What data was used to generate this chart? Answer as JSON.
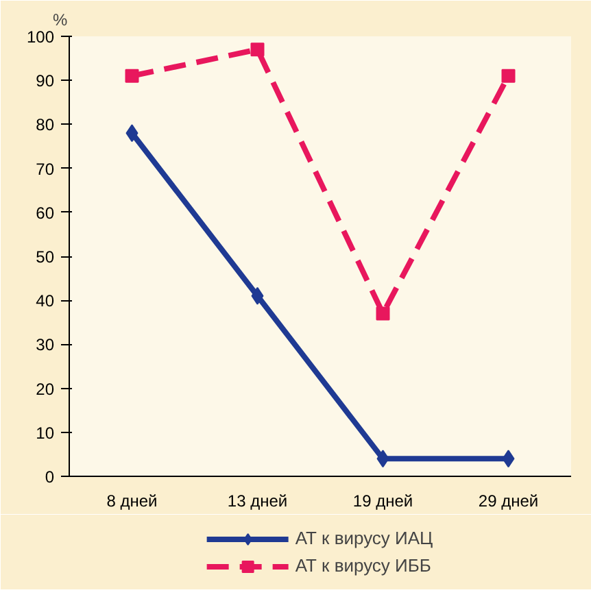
{
  "chart_data": {
    "type": "line",
    "ylabel": "%",
    "categories": [
      "8 дней",
      "13 дней",
      "19 дней",
      "29 дней"
    ],
    "series": [
      {
        "name": "АТ к вирусу ИАЦ",
        "color": "#1f3a93",
        "values": [
          78,
          41,
          4,
          4
        ],
        "marker": "diamond",
        "line_style": "solid"
      },
      {
        "name": "АТ к вирусу ИББ",
        "color": "#e8175d",
        "values": [
          91,
          97,
          37,
          91
        ],
        "marker": "square",
        "line_style": "dashed"
      }
    ],
    "ylim": [
      0,
      100
    ],
    "yticks": [
      0,
      10,
      20,
      30,
      40,
      50,
      60,
      70,
      80,
      90,
      100
    ],
    "grid": false,
    "legend": "bottom"
  }
}
